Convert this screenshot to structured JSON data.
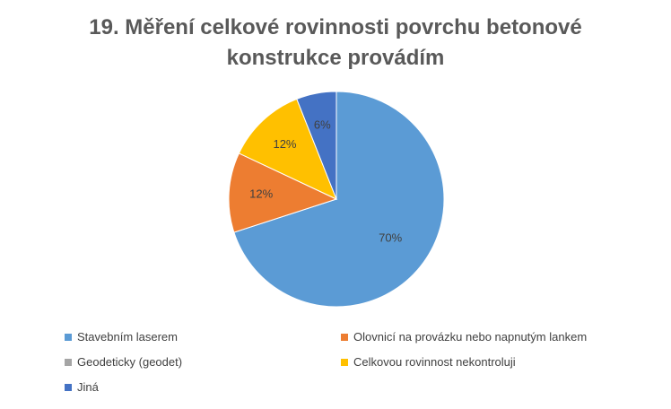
{
  "chart_data": {
    "type": "pie",
    "title_lines": [
      "19. Měření celkové rovinnosti povrchu betonové",
      "konstrukce provádím"
    ],
    "slices": [
      {
        "name": "Stavebním laserem",
        "value": 70,
        "label": "70%",
        "color": "#5B9BD5"
      },
      {
        "name": "Olovnicí na provázku nebo napnutým lankem",
        "value": 12,
        "label": "12%",
        "color": "#ED7D31"
      },
      {
        "name": "Geodeticky (geodet)",
        "value": 0,
        "label": "",
        "color": "#A5A5A5"
      },
      {
        "name": "Celkovou rovinnost nekontroluji",
        "value": 12,
        "label": "12%",
        "color": "#FFC000"
      },
      {
        "name": "Jiná",
        "value": 6,
        "label": "6%",
        "color": "#4472C4"
      }
    ],
    "legend_position": "bottom"
  }
}
